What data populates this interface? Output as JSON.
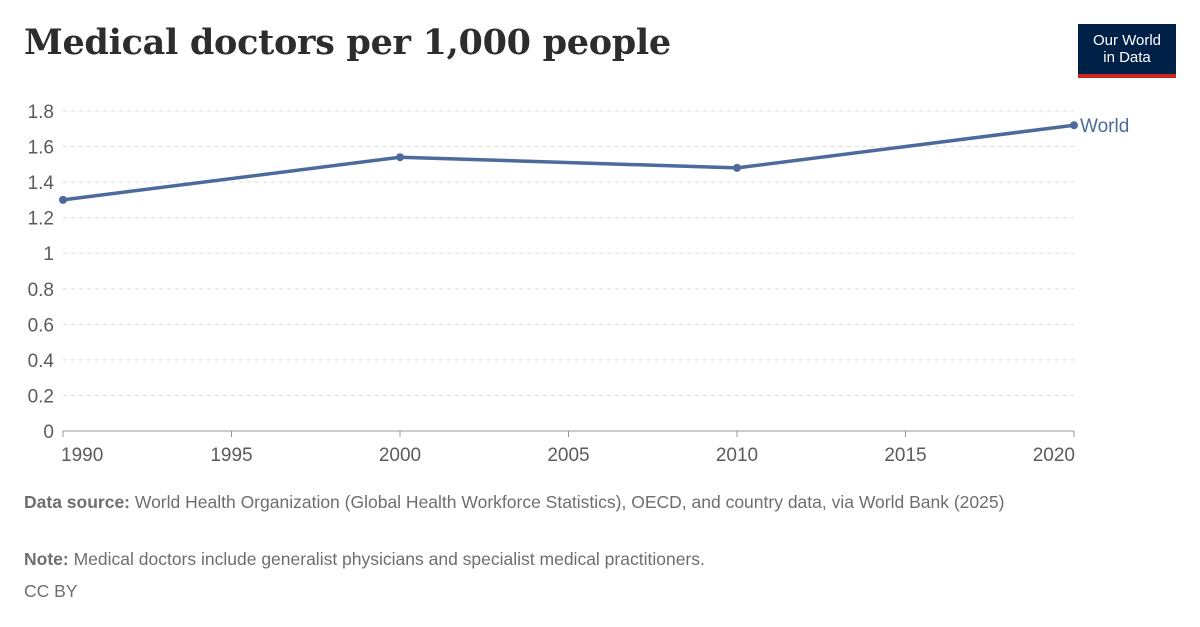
{
  "header": {
    "title": "Medical doctors per 1,000 people",
    "logo_line1": "Our World",
    "logo_line2": "in Data"
  },
  "chart_data": {
    "type": "line",
    "title": "Medical doctors per 1,000 people",
    "xlabel": "",
    "ylabel": "",
    "x": [
      1990,
      2000,
      2010,
      2020
    ],
    "series": [
      {
        "name": "World",
        "values": [
          1.3,
          1.54,
          1.48,
          1.72
        ],
        "color": "#4c6a9c"
      }
    ],
    "xlim": [
      1990,
      2020
    ],
    "ylim": [
      0,
      1.8
    ],
    "xticks": [
      "1990",
      "1995",
      "2000",
      "2005",
      "2010",
      "2015",
      "2020"
    ],
    "yticks": [
      "0",
      "0.2",
      "0.4",
      "0.6",
      "0.8",
      "1",
      "1.2",
      "1.4",
      "1.6",
      "1.8"
    ],
    "grid": "horizontal-dashed",
    "legend": "inline-right"
  },
  "footer": {
    "source_label": "Data source:",
    "source_text": " World Health Organization (Global Health Workforce Statistics), OECD, and country data, via World Bank (2025)",
    "note_label": "Note:",
    "note_text": " Medical doctors include generalist physicians and specialist medical practitioners.",
    "license": "CC BY"
  }
}
